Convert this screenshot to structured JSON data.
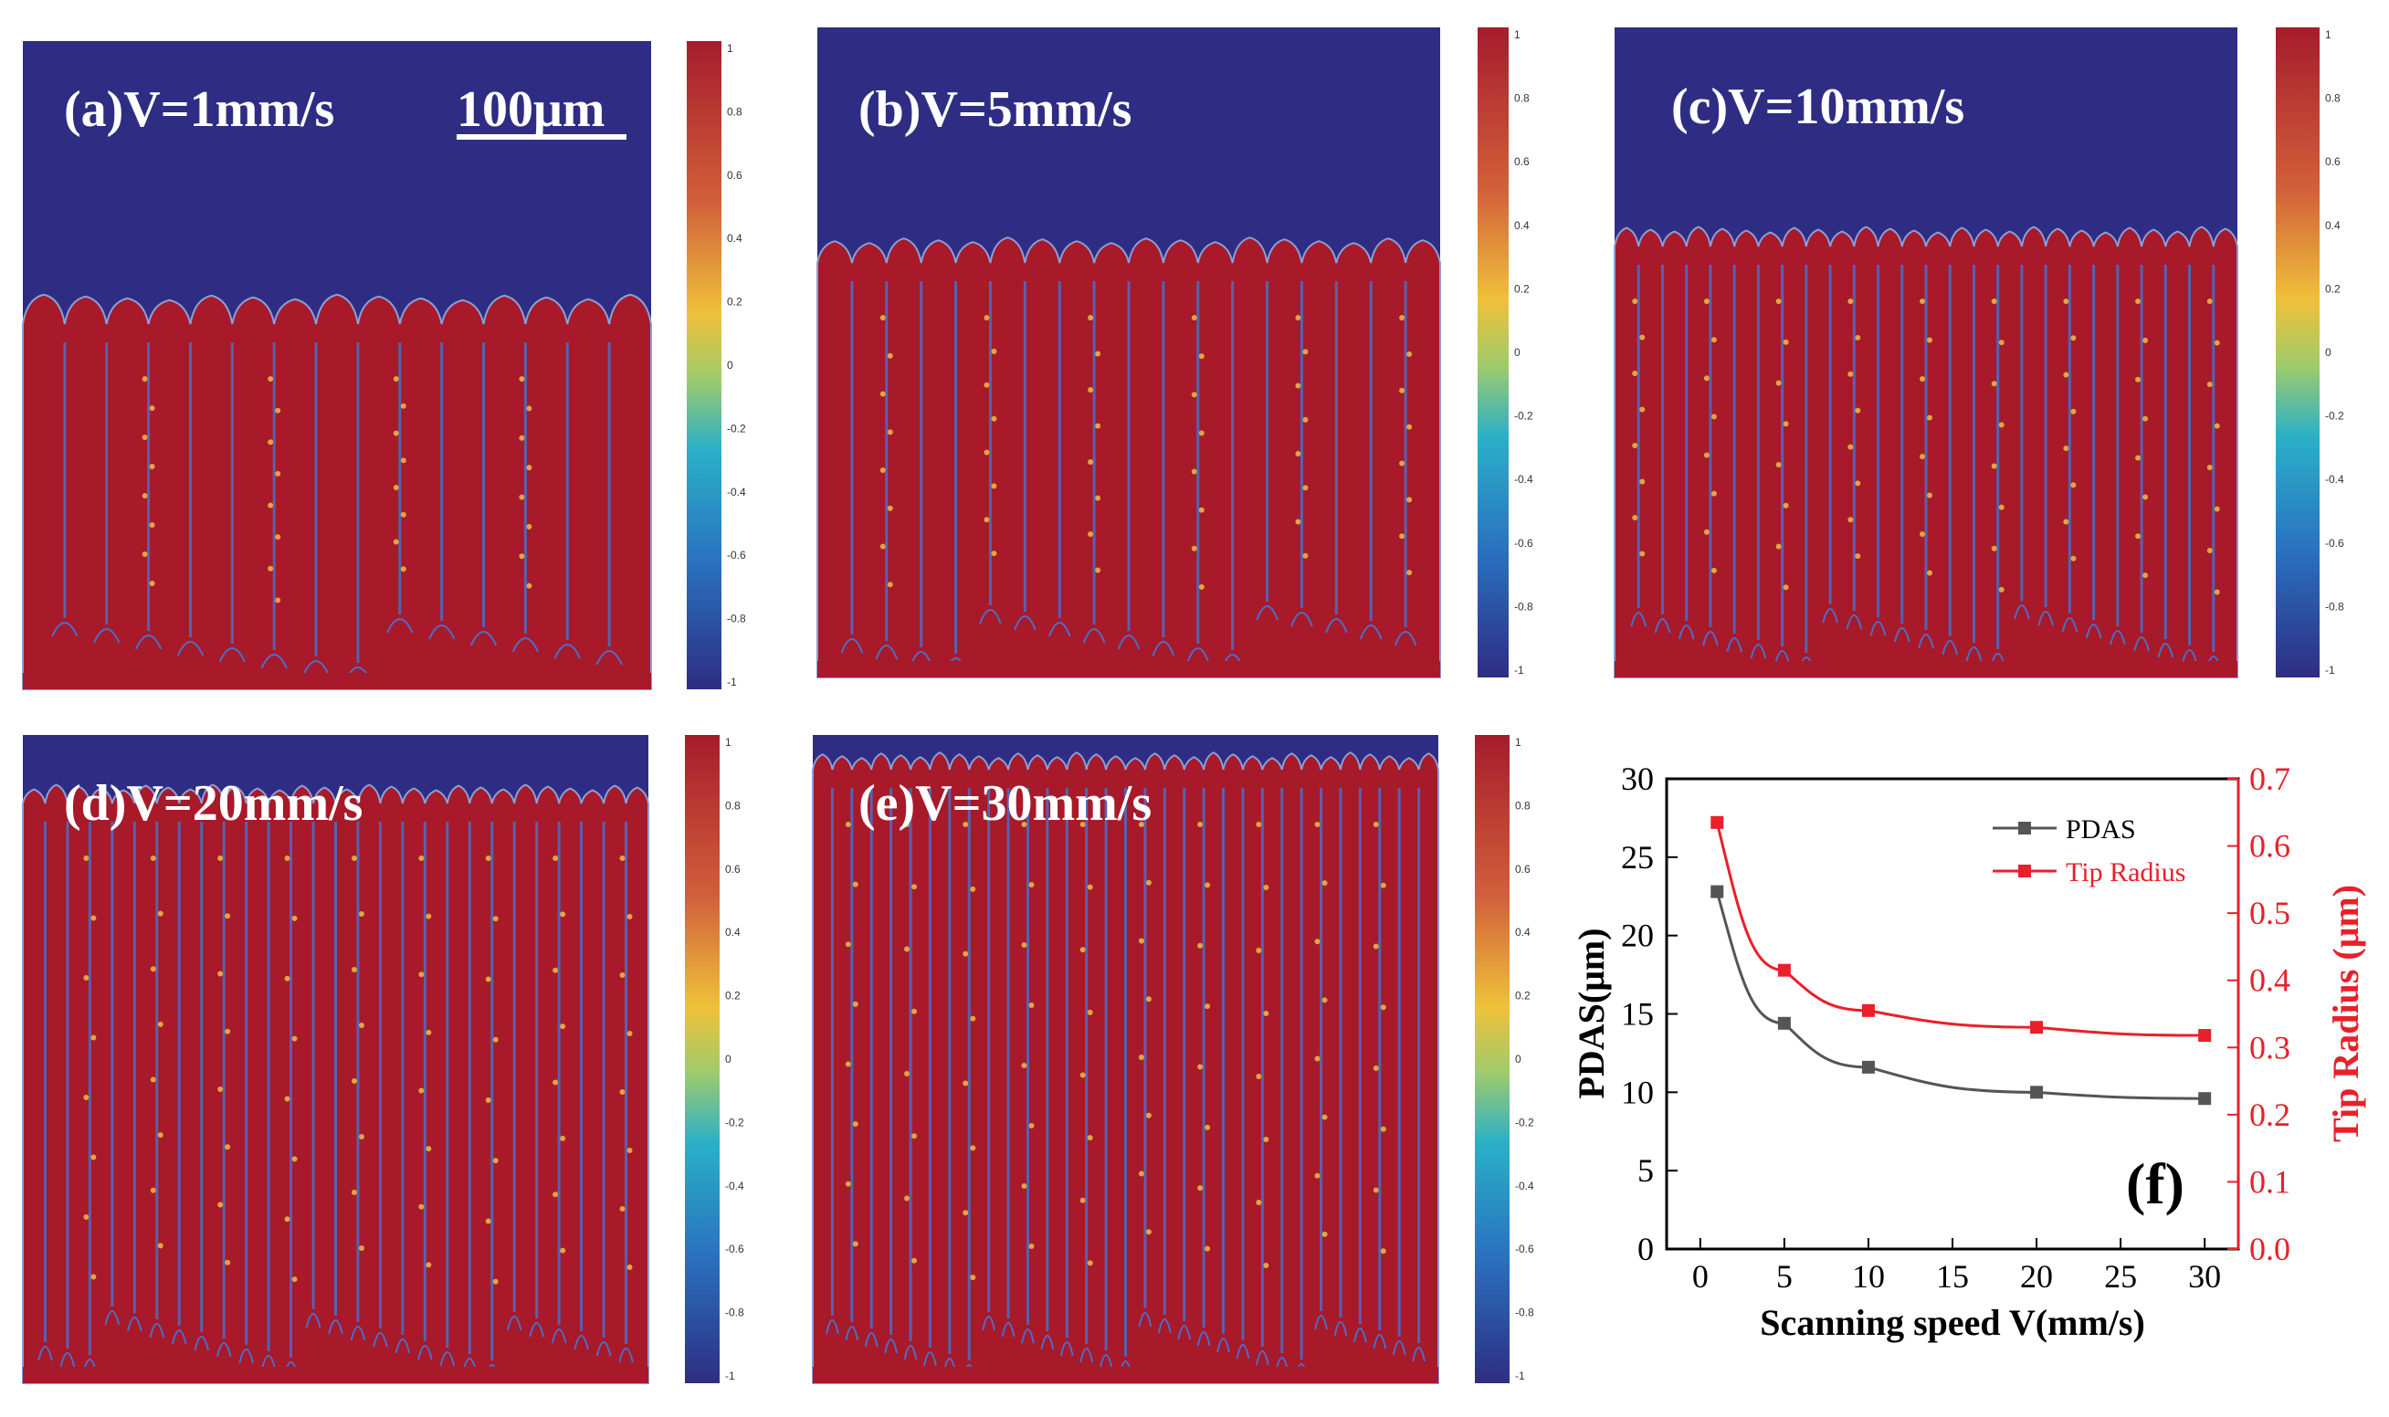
{
  "colors": {
    "liquid": "#2e2d83",
    "solid": "#a8192a",
    "interface": "#4a6fc8",
    "segregation": "#e0a640",
    "left_axis": "#000000",
    "right_axis": "#e8202a"
  },
  "colorbar_ticks": [
    "1",
    "0.8",
    "0.6",
    "0.4",
    "0.2",
    "0",
    "-0.2",
    "-0.4",
    "-0.6",
    "-0.8",
    "-1"
  ],
  "panels": [
    {
      "label": "(a)V=1mm/s",
      "scale_bar": "100μm"
    },
    {
      "label": "(b)V=5mm/s"
    },
    {
      "label": "(c)V=10mm/s"
    },
    {
      "label": "(d)V=20mm/s"
    },
    {
      "label": "(e)V=30mm/s"
    }
  ],
  "chart": {
    "panel_label": "(f)",
    "xlabel": "Scanning speed  V(mm/s)",
    "ylabel": "PDAS(μm)",
    "y2label": "Tip Radius (μm)",
    "xticks": [
      "0",
      "5",
      "10",
      "15",
      "20",
      "25",
      "30"
    ],
    "yticks": [
      "0",
      "5",
      "10",
      "15",
      "20",
      "25",
      "30"
    ],
    "y2ticks": [
      "0.0",
      "0.1",
      "0.2",
      "0.3",
      "0.4",
      "0.5",
      "0.6",
      "0.7"
    ]
  },
  "chart_data": {
    "type": "line",
    "x": [
      1,
      5,
      10,
      20,
      30
    ],
    "xlim": [
      -2,
      32
    ],
    "series": [
      {
        "name": "PDAS",
        "axis": "left",
        "color": "#555555",
        "values": [
          22.8,
          14.4,
          11.6,
          10.0,
          9.6
        ]
      },
      {
        "name": "Tip Radius",
        "axis": "right",
        "color": "#e8202a",
        "values": [
          0.635,
          0.415,
          0.355,
          0.33,
          0.318
        ]
      }
    ],
    "ylim": [
      0,
      30
    ],
    "y2lim": [
      0,
      0.7
    ],
    "legend": "top-right"
  }
}
